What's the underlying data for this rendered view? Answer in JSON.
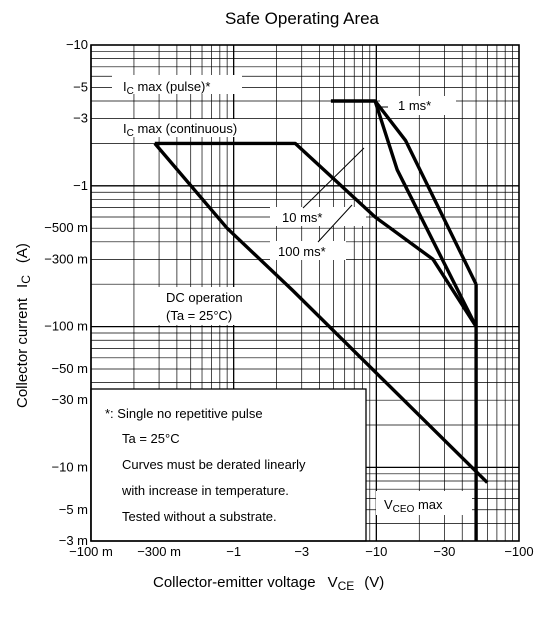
{
  "chart_data": {
    "type": "line",
    "title": "Safe Operating Area",
    "xlabel": "Collector-emitter voltage",
    "xlabel_symbol": "V",
    "xlabel_sub": "CE",
    "xlabel_unit": "(V)",
    "ylabel": "Collector current",
    "ylabel_symbol": "I",
    "ylabel_sub": "C",
    "ylabel_unit": "(A)",
    "x_scale": "log",
    "y_scale": "log",
    "xlim": [
      -0.1,
      -100
    ],
    "ylim": [
      -0.003,
      -10
    ],
    "grid": true,
    "x_ticks": [
      {
        "value": -0.1,
        "label": "−100 m"
      },
      {
        "value": -0.3,
        "label": "−300 m"
      },
      {
        "value": -1,
        "label": "−1"
      },
      {
        "value": -3,
        "label": "−3"
      },
      {
        "value": -10,
        "label": "−10"
      },
      {
        "value": -30,
        "label": "−30"
      },
      {
        "value": -100,
        "label": "−100"
      }
    ],
    "y_ticks": [
      {
        "value": -10,
        "label": "−10"
      },
      {
        "value": -5,
        "label": "−5"
      },
      {
        "value": -3,
        "label": "−3"
      },
      {
        "value": -1,
        "label": "−1"
      },
      {
        "value": -0.5,
        "label": "−500  m"
      },
      {
        "value": -0.3,
        "label": "−300  m"
      },
      {
        "value": -0.1,
        "label": "−100 m"
      },
      {
        "value": -0.05,
        "label": "−50  m"
      },
      {
        "value": -0.03,
        "label": "−30  m"
      },
      {
        "value": -0.01,
        "label": "−10  m"
      },
      {
        "value": -0.005,
        "label": "−5  m"
      },
      {
        "value": -0.003,
        "label": "−3  m"
      }
    ],
    "series": [
      {
        "name": "DC operation",
        "x": [
          -0.28,
          -0.9,
          -2.6,
          -60
        ],
        "y": [
          -2.0,
          -0.5,
          -0.18,
          -0.0078
        ]
      },
      {
        "name": "100 ms*",
        "x": [
          -0.28,
          -2.7,
          -9.8,
          -25,
          -50
        ],
        "y": [
          -2.0,
          -2.0,
          -0.6,
          -0.3,
          -0.1
        ]
      },
      {
        "name": "10 ms*",
        "x": [
          -4.8,
          -9.8,
          -14,
          -50
        ],
        "y": [
          -4.0,
          -4.0,
          -1.3,
          -0.1
        ]
      },
      {
        "name": "1 ms*",
        "x": [
          -9.8,
          -16,
          -50
        ],
        "y": [
          -4.0,
          -2.1,
          -0.2
        ]
      },
      {
        "name": "VCEO max",
        "x": [
          -50,
          -50
        ],
        "y": [
          -0.2,
          -0.003
        ]
      }
    ],
    "annotations": {
      "ic_pulse": {
        "main": "I",
        "sub": "C",
        "rest": " max (pulse)*"
      },
      "ic_cont": {
        "main": "I",
        "sub": "C",
        "rest": " max (continuous)"
      },
      "ms1": "1 ms*",
      "ms10": "10 ms*",
      "ms100": "100 ms*",
      "dc1": "DC operation",
      "dc2": "(Ta = 25°C)",
      "vceo": {
        "main": "V",
        "sub": "CEO",
        "rest": " max"
      }
    },
    "notes": [
      "*: Single no repetitive pulse",
      "Ta = 25°C",
      "Curves must be derated linearly",
      "with increase in temperature.",
      "Tested without a substrate."
    ]
  }
}
